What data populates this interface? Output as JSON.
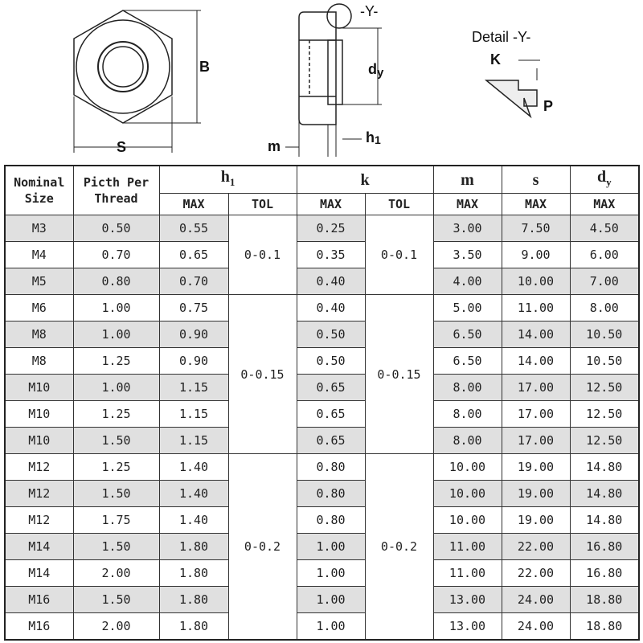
{
  "diagram": {
    "width_label": "S",
    "height_label": "B",
    "detail_callout": "-Y-",
    "m_label": "m",
    "h1_label": {
      "main": "h",
      "sub": "1"
    },
    "dy_label": {
      "main": "d",
      "sub": "y"
    },
    "detail_title": "Detail -Y-",
    "k_label": "K",
    "p_label": "P"
  },
  "table": {
    "header_row1": [
      "Nominal Size",
      "Picth Per Thread",
      {
        "main": "h",
        "sub": "1"
      },
      "k",
      "m",
      "s",
      {
        "main": "d",
        "sub": "y"
      }
    ],
    "header_row2": [
      "MAX",
      "TOL",
      "MAX",
      "TOL",
      "MAX",
      "MAX",
      "MAX"
    ],
    "groups": [
      {
        "h1_tol": "0-0.1",
        "k_tol": "0-0.1",
        "rows": [
          [
            "M3",
            "0.50",
            "0.55",
            "0.25",
            "3.00",
            "7.50",
            "4.50"
          ],
          [
            "M4",
            "0.70",
            "0.65",
            "0.35",
            "3.50",
            "9.00",
            "6.00"
          ],
          [
            "M5",
            "0.80",
            "0.70",
            "0.40",
            "4.00",
            "10.00",
            "7.00"
          ]
        ]
      },
      {
        "h1_tol": "0-0.15",
        "k_tol": "0-0.15",
        "rows": [
          [
            "M6",
            "1.00",
            "0.75",
            "0.40",
            "5.00",
            "11.00",
            "8.00"
          ],
          [
            "M8",
            "1.00",
            "0.90",
            "0.50",
            "6.50",
            "14.00",
            "10.50"
          ],
          [
            "M8",
            "1.25",
            "0.90",
            "0.50",
            "6.50",
            "14.00",
            "10.50"
          ],
          [
            "M10",
            "1.00",
            "1.15",
            "0.65",
            "8.00",
            "17.00",
            "12.50"
          ],
          [
            "M10",
            "1.25",
            "1.15",
            "0.65",
            "8.00",
            "17.00",
            "12.50"
          ],
          [
            "M10",
            "1.50",
            "1.15",
            "0.65",
            "8.00",
            "17.00",
            "12.50"
          ]
        ]
      },
      {
        "h1_tol": "0-0.2",
        "k_tol": "0-0.2",
        "rows": [
          [
            "M12",
            "1.25",
            "1.40",
            "0.80",
            "10.00",
            "19.00",
            "14.80"
          ],
          [
            "M12",
            "1.50",
            "1.40",
            "0.80",
            "10.00",
            "19.00",
            "14.80"
          ],
          [
            "M12",
            "1.75",
            "1.40",
            "0.80",
            "10.00",
            "19.00",
            "14.80"
          ],
          [
            "M14",
            "1.50",
            "1.80",
            "1.00",
            "11.00",
            "22.00",
            "16.80"
          ],
          [
            "M14",
            "2.00",
            "1.80",
            "1.00",
            "11.00",
            "22.00",
            "16.80"
          ],
          [
            "M16",
            "1.50",
            "1.80",
            "1.00",
            "13.00",
            "24.00",
            "18.80"
          ],
          [
            "M16",
            "2.00",
            "1.80",
            "1.00",
            "13.00",
            "24.00",
            "18.80"
          ]
        ]
      }
    ]
  }
}
